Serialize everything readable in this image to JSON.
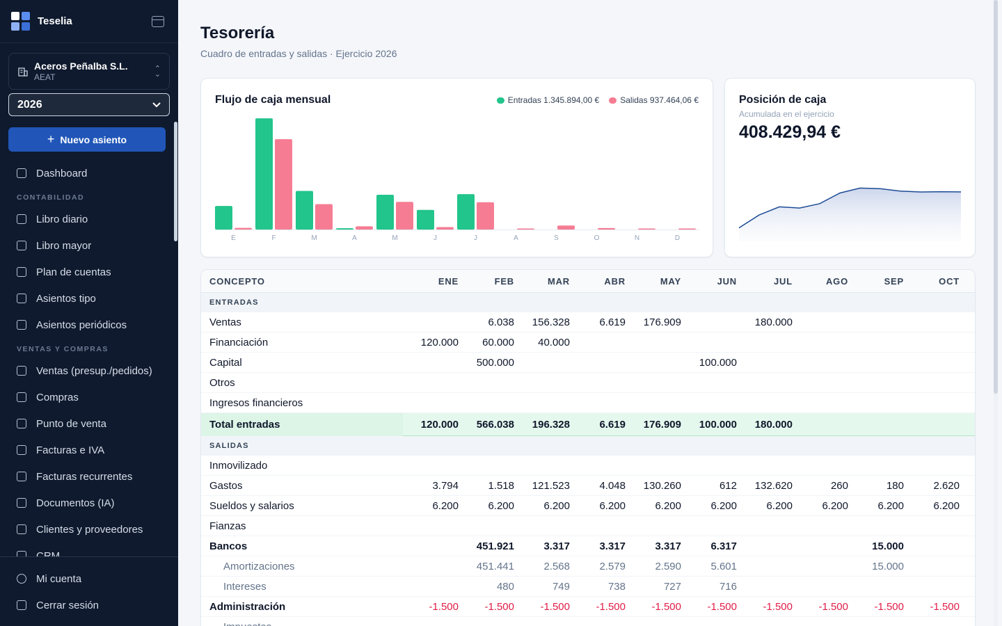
{
  "app": {
    "name": "Teselia",
    "logo_colors": [
      "#ffffff",
      "#5b8def",
      "#8fb0f5",
      "#3b6fd8"
    ]
  },
  "company": {
    "name": "Aceros Peñalba S.L.",
    "sub": "AEAT"
  },
  "year": "2026",
  "new_entry_label": "Nuevo asiento",
  "nav": {
    "dashboard": "Dashboard",
    "section_contabilidad": "CONTABILIDAD",
    "libro_diario": "Libro diario",
    "libro_mayor": "Libro mayor",
    "plan_cuentas": "Plan de cuentas",
    "asientos_tipo": "Asientos tipo",
    "asientos_periodicos": "Asientos periódicos",
    "section_ventas": "VENTAS Y COMPRAS",
    "ventas": "Ventas (presup./pedidos)",
    "compras": "Compras",
    "punto_venta": "Punto de venta",
    "facturas_iva": "Facturas e IVA",
    "facturas_recurrentes": "Facturas recurrentes",
    "documentos": "Documentos (IA)",
    "clientes": "Clientes y proveedores",
    "crm": "CRM"
  },
  "footer": {
    "mi_cuenta": "Mi cuenta",
    "cerrar_sesion": "Cerrar sesión"
  },
  "page": {
    "title": "Tesorería",
    "subtitle": "Cuadro de entradas y salidas · Ejercicio 2026"
  },
  "cashflow_card": {
    "title": "Flujo de caja mensual",
    "legend_entradas": "Entradas 1.345.894,00 €",
    "legend_salidas": "Salidas 937.464,06 €"
  },
  "position_card": {
    "title": "Posición de caja",
    "subtitle": "Acumulada en el ejercicio",
    "value": "408.429,94 €"
  },
  "chart_data": [
    {
      "type": "bar",
      "categories": [
        "E",
        "F",
        "M",
        "A",
        "M",
        "J",
        "J",
        "A",
        "S",
        "O",
        "N",
        "D"
      ],
      "series": [
        {
          "name": "Entradas",
          "color": "#22c58b",
          "values": [
            120000,
            566038,
            196328,
            6619,
            176909,
            100000,
            180000,
            0,
            0,
            0,
            0,
            0
          ]
        },
        {
          "name": "Salidas",
          "color": "#f67c93",
          "values": [
            8494,
            459639,
            129240,
            16166,
            140777,
            12329,
            138820,
            4960,
            20380,
            7320,
            5000,
            5000
          ]
        }
      ],
      "ylim": [
        0,
        570000
      ]
    },
    {
      "type": "area",
      "x": [
        "E",
        "F",
        "M",
        "A",
        "M",
        "J",
        "J",
        "A",
        "S",
        "O",
        "N",
        "D"
      ],
      "values": [
        111506,
        217905,
        284993,
        275446,
        311578,
        399249,
        440429,
        435469,
        415089,
        407769,
        410429,
        408430
      ],
      "ylim": [
        0,
        1000000
      ]
    }
  ],
  "table": {
    "headers": [
      "CONCEPTO",
      "ENE",
      "FEB",
      "MAR",
      "ABR",
      "MAY",
      "JUN",
      "JUL",
      "AGO",
      "SEP",
      "OCT"
    ],
    "section_entradas": "ENTRADAS",
    "section_salidas": "SALIDAS",
    "rows_entradas": [
      {
        "label": "Ventas",
        "v": [
          "",
          "6.038",
          "156.328",
          "6.619",
          "176.909",
          "",
          "180.000",
          "",
          "",
          ""
        ]
      },
      {
        "label": "Financiación",
        "v": [
          "120.000",
          "60.000",
          "40.000",
          "",
          "",
          "",
          "",
          "",
          "",
          ""
        ]
      },
      {
        "label": "Capital",
        "v": [
          "",
          "500.000",
          "",
          "",
          "",
          "100.000",
          "",
          "",
          "",
          ""
        ]
      },
      {
        "label": "Otros",
        "v": [
          "",
          "",
          "",
          "",
          "",
          "",
          "",
          "",
          "",
          ""
        ]
      },
      {
        "label": "Ingresos financieros",
        "v": [
          "",
          "",
          "",
          "",
          "",
          "",
          "",
          "",
          "",
          ""
        ]
      }
    ],
    "total_entradas": {
      "label": "Total entradas",
      "v": [
        "120.000",
        "566.038",
        "196.328",
        "6.619",
        "176.909",
        "100.000",
        "180.000",
        "",
        "",
        ""
      ]
    },
    "rows_salidas": [
      {
        "label": "Inmovilizado",
        "kind": "normal",
        "v": [
          "",
          "",
          "",
          "",
          "",
          "",
          "",
          "",
          "",
          ""
        ]
      },
      {
        "label": "Gastos",
        "kind": "normal",
        "v": [
          "3.794",
          "1.518",
          "121.523",
          "4.048",
          "130.260",
          "612",
          "132.620",
          "260",
          "180",
          "2.620"
        ]
      },
      {
        "label": "Sueldos y salarios",
        "kind": "normal",
        "v": [
          "6.200",
          "6.200",
          "6.200",
          "6.200",
          "6.200",
          "6.200",
          "6.200",
          "6.200",
          "6.200",
          "6.200"
        ]
      },
      {
        "label": "Fianzas",
        "kind": "normal",
        "v": [
          "",
          "",
          "",
          "",
          "",
          "",
          "",
          "",
          "",
          ""
        ]
      },
      {
        "label": "Bancos",
        "kind": "bold",
        "v": [
          "",
          "451.921",
          "3.317",
          "3.317",
          "3.317",
          "6.317",
          "",
          "",
          "15.000",
          ""
        ]
      },
      {
        "label": "Amortizaciones",
        "kind": "sub",
        "v": [
          "",
          "451.441",
          "2.568",
          "2.579",
          "2.590",
          "5.601",
          "",
          "",
          "15.000",
          ""
        ]
      },
      {
        "label": "Intereses",
        "kind": "sub",
        "v": [
          "",
          "480",
          "749",
          "738",
          "727",
          "716",
          "",
          "",
          "",
          ""
        ]
      },
      {
        "label": "Administración",
        "kind": "boldneg",
        "v": [
          "-1.500",
          "-1.500",
          "-1.500",
          "-1.500",
          "-1.500",
          "-1.500",
          "-1.500",
          "-1.500",
          "-1.500",
          "-1.500"
        ]
      },
      {
        "label": "Impuestos",
        "kind": "sub",
        "v": [
          "",
          "",
          "",
          "",
          "",
          "",
          "",
          "",
          "",
          ""
        ]
      }
    ]
  },
  "colors": {
    "entradas": "#22c58b",
    "salidas": "#f67c93",
    "accent": "#2156b8",
    "sidebar": "#0f1a2e",
    "negative": "#e11d48"
  }
}
